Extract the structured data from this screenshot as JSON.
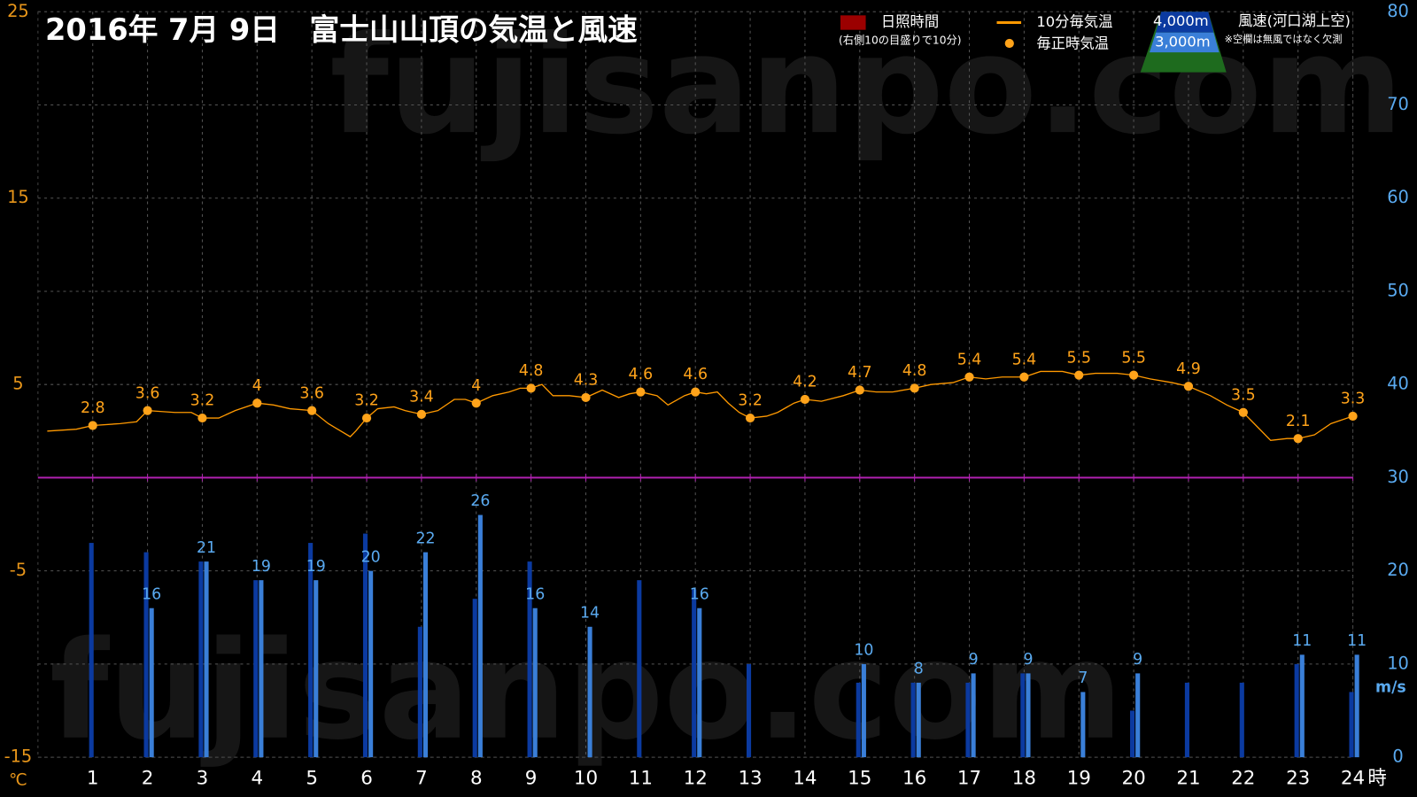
{
  "chart_data": {
    "type": "combo",
    "title": "2016年 7月 9日　富士山山頂の気温と風速",
    "watermark": "fujisanpo.com",
    "x_unit": "時",
    "y_unit": "℃",
    "y2_unit": "m/s",
    "legend": {
      "sunshine": "日照時間",
      "sunshine_note": "(右側10の目盛りで10分)",
      "wind_title": "風速(河口湖上空)",
      "wind_note": "※空欄は無風ではなく欠測",
      "sunshine_color": "#9b0000"
    },
    "xlim": [
      0,
      24
    ],
    "xticks": [
      1,
      2,
      3,
      4,
      5,
      6,
      7,
      8,
      9,
      10,
      11,
      12,
      13,
      14,
      15,
      16,
      17,
      18,
      19,
      20,
      21,
      22,
      23,
      24
    ],
    "ylim": [
      -15,
      25
    ],
    "yticks": [
      -15,
      -5,
      5,
      15,
      25
    ],
    "y2lim": [
      0,
      80
    ],
    "y2ticks": [
      0,
      10,
      20,
      30,
      40,
      50,
      60,
      70,
      80
    ],
    "grid": true,
    "series": [
      {
        "name": "10分毎気温",
        "kind": "line",
        "color": "#ff9900",
        "x": [
          0.17,
          0.7,
          1,
          1.5,
          1.8,
          2,
          2.5,
          2.8,
          3,
          3.3,
          3.6,
          4,
          4.3,
          4.6,
          5,
          5.3,
          5.7,
          5.8,
          6,
          6.2,
          6.5,
          6.7,
          7,
          7.3,
          7.6,
          7.8,
          8,
          8.3,
          8.6,
          8.8,
          9,
          9.2,
          9.4,
          9.7,
          10,
          10.3,
          10.6,
          10.8,
          11,
          11.3,
          11.5,
          11.8,
          12,
          12.2,
          12.4,
          12.6,
          12.8,
          13,
          13.3,
          13.5,
          13.8,
          14,
          14.3,
          14.7,
          15,
          15.3,
          15.6,
          16,
          16.3,
          16.7,
          17,
          17.3,
          17.6,
          18,
          18.3,
          18.7,
          19,
          19.3,
          19.7,
          20,
          20.3,
          20.7,
          21,
          21.4,
          21.7,
          22,
          22.2,
          22.5,
          22.8,
          23,
          23.3,
          23.6,
          24
        ],
        "values": [
          2.5,
          2.6,
          2.8,
          2.9,
          3.0,
          3.6,
          3.5,
          3.5,
          3.2,
          3.2,
          3.6,
          4,
          3.9,
          3.7,
          3.6,
          2.9,
          2.2,
          2.5,
          3.2,
          3.7,
          3.8,
          3.6,
          3.4,
          3.6,
          4.2,
          4.2,
          4,
          4.4,
          4.6,
          4.8,
          4.8,
          5.0,
          4.4,
          4.4,
          4.3,
          4.7,
          4.3,
          4.5,
          4.6,
          4.4,
          3.9,
          4.4,
          4.6,
          4.5,
          4.6,
          4.0,
          3.5,
          3.2,
          3.3,
          3.5,
          4.0,
          4.2,
          4.1,
          4.4,
          4.7,
          4.6,
          4.6,
          4.8,
          5.0,
          5.1,
          5.4,
          5.3,
          5.4,
          5.4,
          5.7,
          5.7,
          5.5,
          5.6,
          5.6,
          5.5,
          5.3,
          5.1,
          4.9,
          4.4,
          3.9,
          3.5,
          2.9,
          2.0,
          2.1,
          2.1,
          2.3,
          2.9,
          3.3
        ]
      },
      {
        "name": "毎正時気温",
        "kind": "points",
        "color": "#ffa31a",
        "x": [
          1,
          2,
          3,
          4,
          5,
          6,
          7,
          8,
          9,
          10,
          11,
          12,
          13,
          14,
          15,
          16,
          17,
          18,
          19,
          20,
          21,
          22,
          23,
          24
        ],
        "values": [
          2.8,
          3.6,
          3.2,
          4,
          3.6,
          3.2,
          3.4,
          4,
          4.8,
          4.3,
          4.6,
          4.6,
          3.2,
          4.2,
          4.7,
          4.8,
          5.4,
          5.4,
          5.5,
          5.5,
          4.9,
          3.5,
          2.1,
          3.3
        ]
      },
      {
        "name": "4,000m",
        "kind": "bar",
        "axis": "y2",
        "color": "#0b3aa0",
        "labels": false,
        "x": [
          1,
          2,
          3,
          4,
          5,
          6,
          7,
          8,
          9,
          10,
          11,
          12,
          13,
          14,
          15,
          16,
          17,
          18,
          19,
          20,
          21,
          22,
          23,
          24
        ],
        "values": [
          23,
          22,
          21,
          19,
          23,
          24,
          14,
          17,
          21,
          null,
          19,
          18,
          10,
          null,
          8,
          8,
          8,
          9,
          null,
          5,
          8,
          8,
          10,
          7
        ]
      },
      {
        "name": "3,000m",
        "kind": "bar",
        "axis": "y2",
        "color": "#3a7fd8",
        "labels": true,
        "x": [
          1,
          2,
          3,
          4,
          5,
          6,
          7,
          8,
          9,
          10,
          11,
          12,
          13,
          14,
          15,
          16,
          17,
          18,
          19,
          20,
          21,
          22,
          23,
          24
        ],
        "values": [
          null,
          16,
          21,
          19,
          19,
          20,
          22,
          26,
          16,
          14,
          null,
          16,
          null,
          null,
          10,
          8,
          9,
          9,
          7,
          9,
          null,
          null,
          11,
          11
        ]
      }
    ]
  }
}
